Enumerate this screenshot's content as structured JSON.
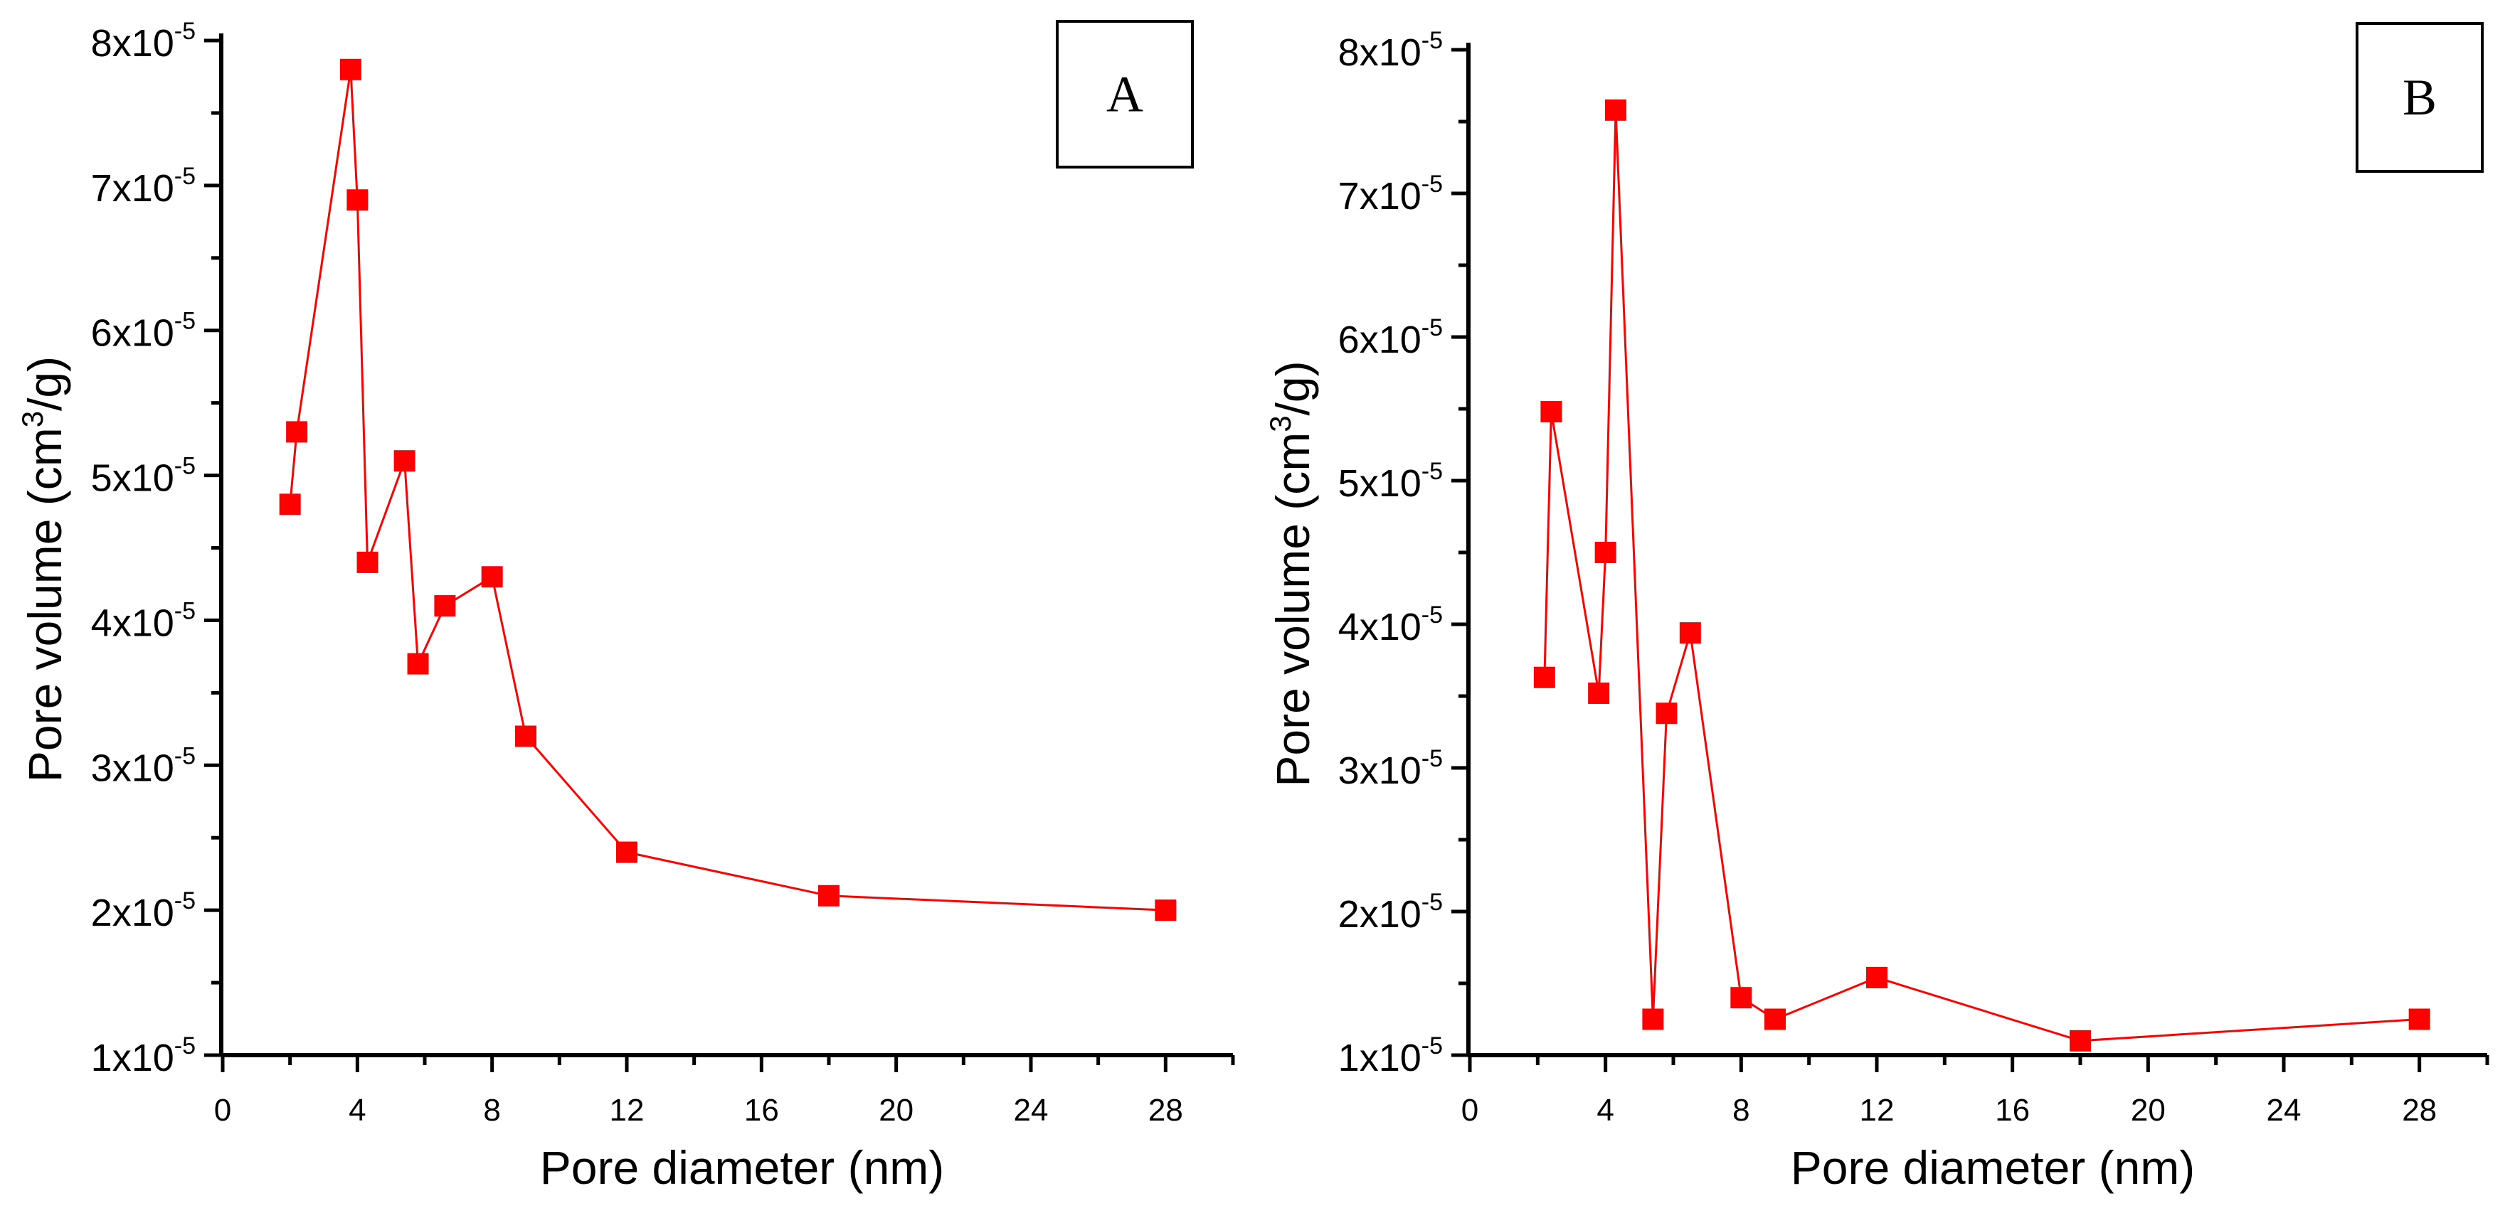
{
  "chart_data": [
    {
      "type": "line",
      "panel_label": "A",
      "title": "",
      "xlabel": "Pore diameter (nm)",
      "ylabel_main": "Pore volume (cm",
      "ylabel_sup": "3",
      "ylabel_end": "/g)",
      "xlim": [
        0,
        30
      ],
      "ylim": [
        1,
        8
      ],
      "xticks": [
        0,
        4,
        8,
        12,
        16,
        20,
        24,
        28
      ],
      "yticks": [
        1,
        2,
        3,
        4,
        5,
        6,
        7,
        8
      ],
      "ytick_mantissa": [
        "1x10",
        "2x10",
        "3x10",
        "4x10",
        "5x10",
        "6x10",
        "7x10",
        "8x10"
      ],
      "ytick_exponent": "-5",
      "y_unit_multiplier": "1e-5",
      "series": [
        {
          "name": "Pore volume",
          "color": "#ff0000",
          "marker": "square",
          "x": [
            2.0,
            2.2,
            3.8,
            4.0,
            4.3,
            5.4,
            5.8,
            6.6,
            8.0,
            9.0,
            12.0,
            18.0,
            28.0
          ],
          "y": [
            4.8,
            5.3,
            7.8,
            6.9,
            4.4,
            5.1,
            3.7,
            4.1,
            4.3,
            3.2,
            2.4,
            2.1,
            2.0
          ]
        }
      ]
    },
    {
      "type": "line",
      "panel_label": "B",
      "title": "",
      "xlabel": "Pore diameter (nm)",
      "ylabel_main": "Pore volume (cm",
      "ylabel_sup": "3",
      "ylabel_end": "/g)",
      "xlim": [
        0,
        30
      ],
      "ylim": [
        1,
        8
      ],
      "xticks": [
        0,
        4,
        8,
        12,
        16,
        20,
        24,
        28
      ],
      "yticks": [
        1,
        2,
        3,
        4,
        5,
        6,
        7,
        8
      ],
      "ytick_mantissa": [
        "1x10",
        "2x10",
        "3x10",
        "4x10",
        "5x10",
        "6x10",
        "7x10",
        "8x10"
      ],
      "ytick_exponent": "-5",
      "y_unit_multiplier": "1e-5",
      "series": [
        {
          "name": "Pore volume",
          "color": "#ff0000",
          "marker": "square",
          "x": [
            2.2,
            2.4,
            3.8,
            4.0,
            4.3,
            5.4,
            5.8,
            6.5,
            8.0,
            9.0,
            12.0,
            18.0,
            28.0
          ],
          "y": [
            3.63,
            5.48,
            3.52,
            4.5,
            7.58,
            1.25,
            3.38,
            3.94,
            1.4,
            1.25,
            1.54,
            1.1,
            1.25
          ]
        }
      ]
    }
  ]
}
